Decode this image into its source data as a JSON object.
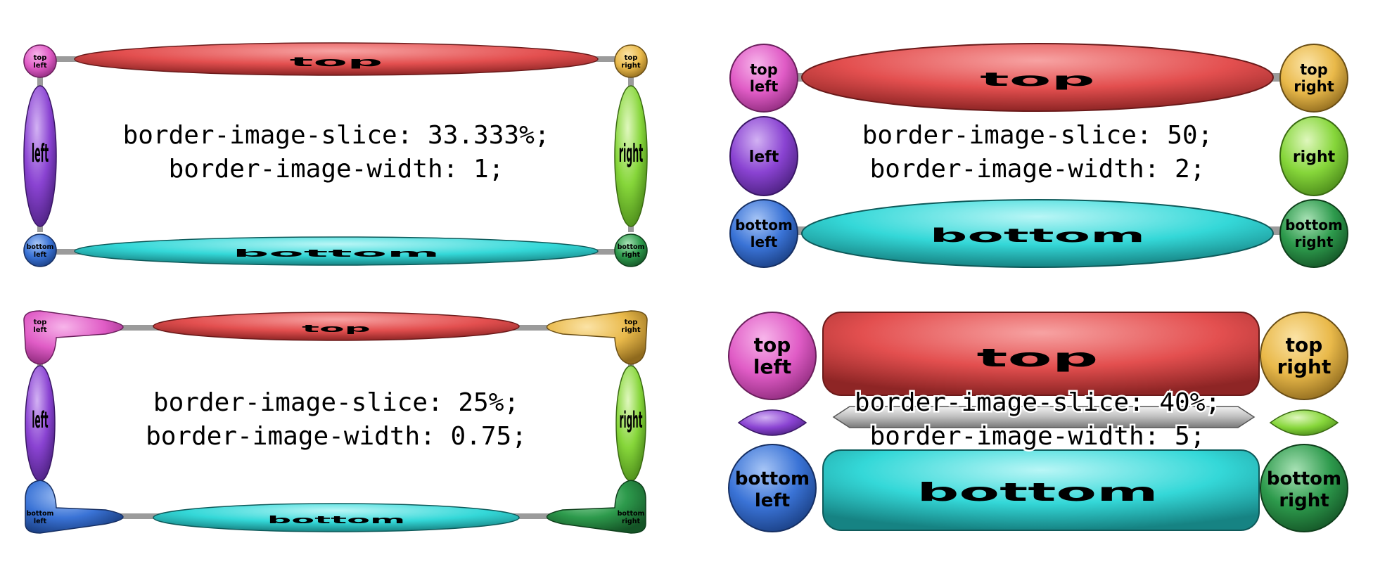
{
  "colors": {
    "top_left": "#e05cc6",
    "top": "#e34f4f",
    "top_right": "#e9b94a",
    "left": "#8a43d2",
    "right": "#86d63a",
    "bottom_left": "#3a73d6",
    "bottom": "#34d8d8",
    "bottom_right": "#2d9a4c",
    "connector": "#9b9b9b"
  },
  "pieces": {
    "top_left": [
      "top",
      "left"
    ],
    "top": "top",
    "top_right": [
      "top",
      "right"
    ],
    "left": "left",
    "right": "right",
    "bottom_left": [
      "bottom",
      "left"
    ],
    "bottom": "bottom",
    "bottom_right": [
      "bottom",
      "right"
    ]
  },
  "panels": [
    {
      "slice": "border-image-slice: 33.333%;",
      "width": "border-image-width: 1;"
    },
    {
      "slice": "border-image-slice: 50;",
      "width": "border-image-width: 2;"
    },
    {
      "slice": "border-image-slice: 25%;",
      "width": "border-image-width: 0.75;"
    },
    {
      "slice": "border-image-slice: 40%;",
      "width": "border-image-width: 5;"
    }
  ]
}
